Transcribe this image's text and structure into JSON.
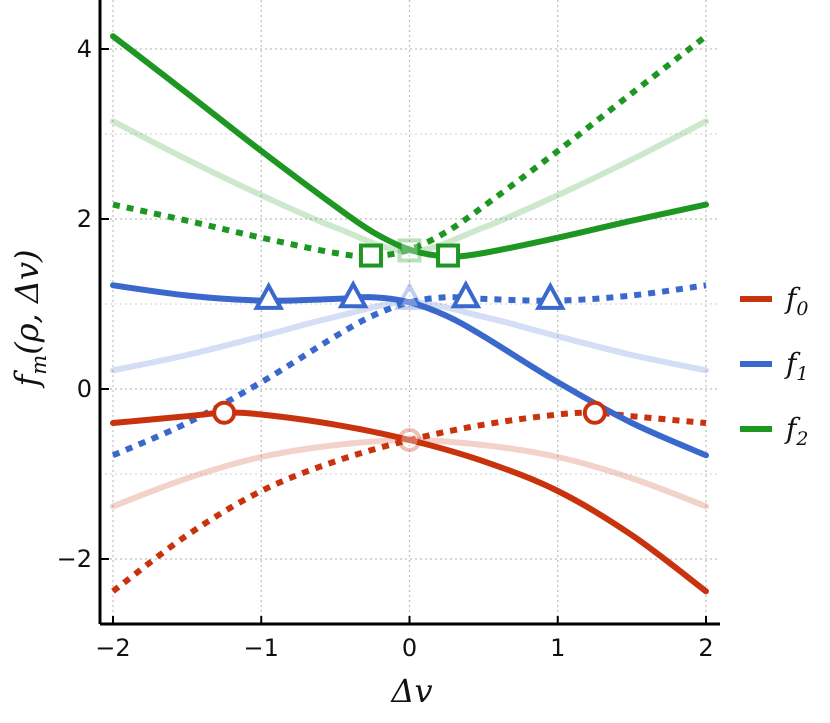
{
  "chart_data": {
    "type": "line",
    "xlabel": "Δv",
    "ylabel": "f_m(ρ, Δv)",
    "xlim": [
      -2,
      2
    ],
    "ylim": [
      -2.8,
      4.5
    ],
    "x_ticks": [
      -2,
      -1,
      0,
      1,
      2
    ],
    "x_tick_labels": [
      "-2",
      "-1",
      "0",
      "1",
      "2"
    ],
    "y_ticks": [
      -2,
      0,
      2,
      4
    ],
    "y_tick_labels": [
      "-2",
      "0",
      "2",
      "4"
    ],
    "grid": true,
    "legend_position": "right",
    "series": [
      {
        "name": "f0",
        "legend_base": "f",
        "legend_sub": "0",
        "color": "#c8330e",
        "marker": "circle",
        "solid": {
          "x": [
            -2,
            -1.5,
            -1.25,
            -1,
            -0.5,
            0,
            0.5,
            1,
            1.5,
            2
          ],
          "y": [
            -0.4,
            -0.32,
            -0.28,
            -0.3,
            -0.42,
            -0.6,
            -0.85,
            -1.2,
            -1.72,
            -2.38
          ]
        },
        "dotted": {
          "x": [
            -2,
            -1.5,
            -1,
            -0.5,
            0,
            0.5,
            1,
            1.25,
            1.5,
            2
          ],
          "y": [
            -2.38,
            -1.72,
            -1.2,
            -0.85,
            -0.6,
            -0.42,
            -0.3,
            -0.28,
            -0.32,
            -0.4
          ]
        },
        "faded": {
          "x": [
            -2,
            -1.5,
            -1,
            -0.5,
            0,
            0.5,
            1,
            1.5,
            2
          ],
          "y": [
            -1.38,
            -1.05,
            -0.8,
            -0.66,
            -0.6,
            -0.66,
            -0.8,
            -1.05,
            -1.38
          ]
        },
        "markers": {
          "x": [
            -1.25,
            1.25
          ],
          "y": [
            -0.28,
            -0.28
          ]
        },
        "faded_markers": {
          "x": [
            0
          ],
          "y": [
            -0.6
          ]
        }
      },
      {
        "name": "f1",
        "legend_base": "f",
        "legend_sub": "1",
        "color": "#3a68cc",
        "marker": "triangle",
        "solid": {
          "x": [
            -2,
            -1.5,
            -1,
            -0.5,
            -0.25,
            0,
            0.25,
            0.5,
            1,
            1.5,
            2
          ],
          "y": [
            1.22,
            1.1,
            1.04,
            1.06,
            1.08,
            1.02,
            0.86,
            0.62,
            0.08,
            -0.4,
            -0.78
          ]
        },
        "dotted": {
          "x": [
            -2,
            -1.5,
            -1,
            -0.5,
            -0.25,
            0,
            0.25,
            0.5,
            1,
            1.5,
            2
          ],
          "y": [
            -0.78,
            -0.4,
            0.08,
            0.62,
            0.86,
            1.02,
            1.08,
            1.06,
            1.04,
            1.1,
            1.22
          ]
        },
        "faded": {
          "x": [
            -2,
            -1.5,
            -1,
            -0.5,
            0,
            0.5,
            1,
            1.5,
            2
          ],
          "y": [
            0.22,
            0.4,
            0.62,
            0.85,
            1.02,
            0.85,
            0.62,
            0.4,
            0.22
          ]
        },
        "markers": {
          "x": [
            -0.95,
            -0.38,
            0.38,
            0.95
          ],
          "y": [
            1.06,
            1.08,
            1.08,
            1.06
          ]
        },
        "faded_markers": {
          "x": [
            0
          ],
          "y": [
            1.06
          ]
        }
      },
      {
        "name": "f2",
        "legend_base": "f",
        "legend_sub": "2",
        "color": "#1e9622",
        "marker": "square",
        "solid": {
          "x": [
            -2,
            -1.5,
            -1,
            -0.5,
            -0.25,
            0,
            0.25,
            0.5,
            1,
            1.5,
            2
          ],
          "y": [
            4.15,
            3.48,
            2.8,
            2.15,
            1.85,
            1.64,
            1.56,
            1.6,
            1.78,
            1.98,
            2.17
          ]
        },
        "dotted": {
          "x": [
            -2,
            -1.5,
            -1,
            -0.5,
            -0.25,
            0,
            0.25,
            0.5,
            1,
            1.5,
            2
          ],
          "y": [
            2.17,
            1.98,
            1.78,
            1.6,
            1.56,
            1.64,
            1.85,
            2.15,
            2.8,
            3.48,
            4.15
          ]
        },
        "faded": {
          "x": [
            -2,
            -1.5,
            -1,
            -0.5,
            0,
            0.5,
            1,
            1.5,
            2
          ],
          "y": [
            3.15,
            2.7,
            2.28,
            1.9,
            1.62,
            1.9,
            2.28,
            2.7,
            3.15
          ]
        },
        "markers": {
          "x": [
            -0.26,
            0.26
          ],
          "y": [
            1.57,
            1.57
          ]
        },
        "faded_markers": {
          "x": [
            0
          ],
          "y": [
            1.63
          ]
        }
      }
    ]
  }
}
